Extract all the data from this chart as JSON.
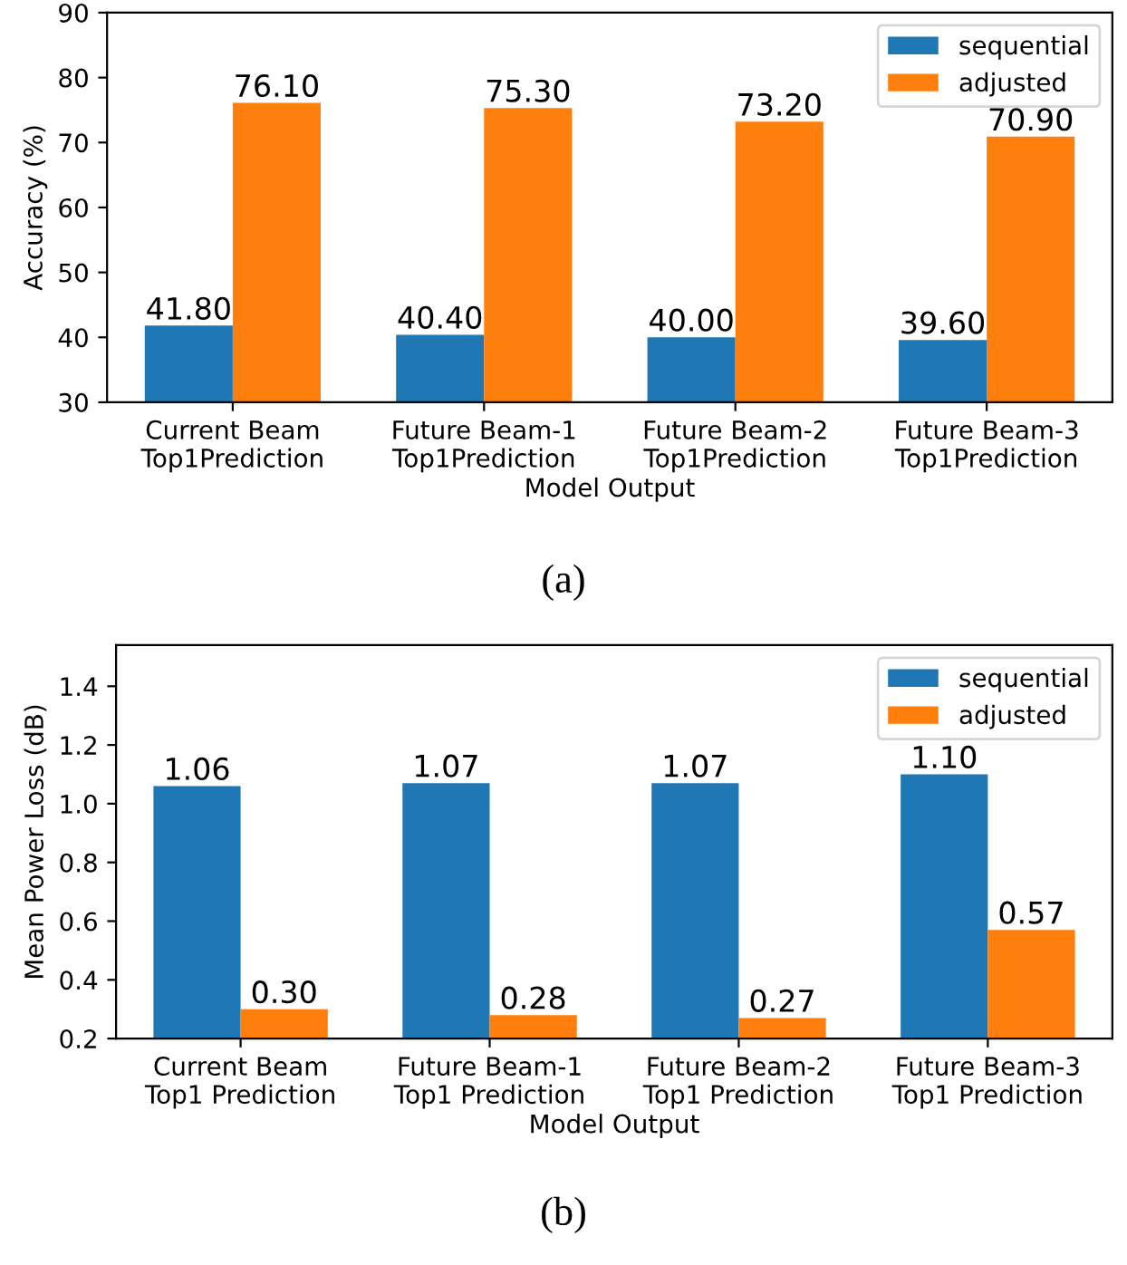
{
  "chart_data": [
    {
      "type": "bar",
      "categories": [
        "Current Beam\nTop1Prediction",
        "Future Beam-1\nTop1Prediction",
        "Future Beam-2\nTop1Prediction",
        "Future Beam-3\nTop1Prediction"
      ],
      "xlabel": "Model Output",
      "ylabel": "Accuracy (%)",
      "ylim": [
        30,
        90
      ],
      "yticks": [
        30,
        40,
        50,
        60,
        70,
        80,
        90
      ],
      "legend": "top right",
      "grid": false,
      "annotations": [
        "(a)"
      ],
      "series": [
        {
          "name": "sequential",
          "color": "#1f77b4",
          "values": [
            41.8,
            40.4,
            40.0,
            39.6
          ],
          "value_labels": [
            "41.80",
            "40.40",
            "40.00",
            "39.60"
          ]
        },
        {
          "name": "adjusted",
          "color": "#ff7f0e",
          "values": [
            76.1,
            75.3,
            73.2,
            70.9
          ],
          "value_labels": [
            "76.10",
            "75.30",
            "73.20",
            "70.90"
          ]
        }
      ]
    },
    {
      "type": "bar",
      "categories": [
        "Current Beam\nTop1 Prediction",
        "Future Beam-1\nTop1 Prediction",
        "Future Beam-2\nTop1 Prediction",
        "Future Beam-3\nTop1 Prediction"
      ],
      "xlabel": "Model Output",
      "ylabel": "Mean Power Loss (dB)",
      "ylim": [
        0.2,
        1.54
      ],
      "yticks": [
        {
          "value": 0.2,
          "label": "0.2"
        },
        {
          "value": 0.4,
          "label": "0.4"
        },
        {
          "value": 0.6,
          "label": "0.6"
        },
        {
          "value": 0.8,
          "label": "0.8"
        },
        {
          "value": 1.0,
          "label": "1.0"
        },
        {
          "value": 1.2,
          "label": "1.2"
        },
        {
          "value": 1.4,
          "label": "1.4"
        }
      ],
      "legend": "top right",
      "grid": false,
      "annotations": [
        "(b)"
      ],
      "series": [
        {
          "name": "sequential",
          "color": "#1f77b4",
          "values": [
            1.06,
            1.07,
            1.07,
            1.1
          ],
          "value_labels": [
            "1.06",
            "1.07",
            "1.07",
            "1.10"
          ]
        },
        {
          "name": "adjusted",
          "color": "#ff7f0e",
          "values": [
            0.3,
            0.28,
            0.27,
            0.57
          ],
          "value_labels": [
            "0.30",
            "0.28",
            "0.27",
            "0.57"
          ]
        }
      ]
    }
  ]
}
